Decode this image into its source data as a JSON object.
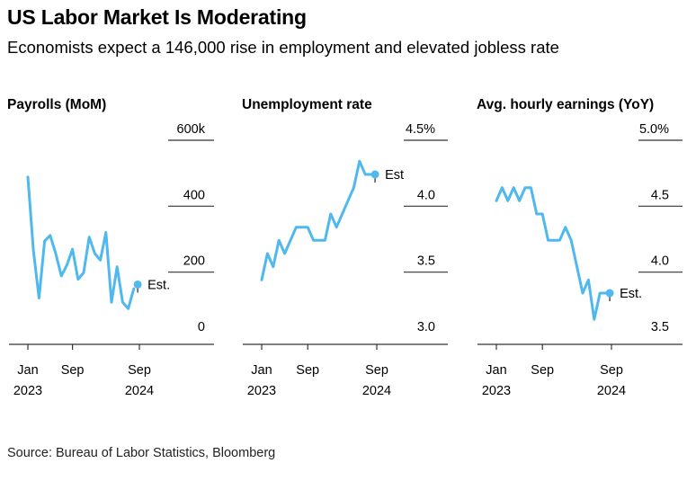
{
  "title": "US Labor Market Is Moderating",
  "subtitle": "Economists expect a 146,000 rise in employment and elevated jobless rate",
  "source": "Source: Bureau of Labor Statistics, Bloomberg",
  "colors": {
    "line": "#4fb8ee",
    "axis": "#333333",
    "text": "#000000"
  },
  "chart_data": [
    {
      "type": "line",
      "title": "Payrolls (MoM)",
      "ylim": [
        0,
        600
      ],
      "yticks": [
        0,
        200,
        400,
        600
      ],
      "ytick_labels": [
        "0",
        "200",
        "400",
        "600k"
      ],
      "x_label_groups": [
        {
          "month": "Jan",
          "year": "2023"
        },
        {
          "month": "Sep",
          "year": ""
        },
        {
          "month": "Sep",
          "year": "2024"
        }
      ],
      "x_label_index": [
        0,
        8,
        20
      ],
      "values": [
        472,
        248,
        105,
        278,
        295,
        240,
        172,
        205,
        253,
        162,
        182,
        290,
        240,
        220,
        304,
        92,
        200,
        92,
        73,
        133
      ],
      "estimate": {
        "value": 146,
        "label": "Est."
      }
    },
    {
      "type": "line",
      "title": "Unemployment rate",
      "ylim": [
        3.0,
        4.5
      ],
      "yticks": [
        3.0,
        3.5,
        4.0,
        4.5
      ],
      "ytick_labels": [
        "3.0",
        "3.5",
        "4.0",
        "4.5%"
      ],
      "x_label_groups": [
        {
          "month": "Jan",
          "year": "2023"
        },
        {
          "month": "Sep",
          "year": ""
        },
        {
          "month": "Sep",
          "year": "2024"
        }
      ],
      "x_label_index": [
        0,
        8,
        20
      ],
      "values": [
        3.4,
        3.6,
        3.5,
        3.7,
        3.6,
        3.7,
        3.8,
        3.8,
        3.8,
        3.7,
        3.7,
        3.7,
        3.9,
        3.8,
        3.9,
        4.0,
        4.1,
        4.3,
        4.2,
        4.2
      ],
      "estimate": {
        "value": 4.2,
        "label": "Est"
      }
    },
    {
      "type": "line",
      "title": "Avg. hourly earnings (YoY)",
      "ylim": [
        3.5,
        5.0
      ],
      "yticks": [
        3.5,
        4.0,
        4.5,
        5.0
      ],
      "ytick_labels": [
        "3.5",
        "4.0",
        "4.5",
        "5.0%"
      ],
      "x_label_groups": [
        {
          "month": "Jan",
          "year": "2023"
        },
        {
          "month": "Sep",
          "year": ""
        },
        {
          "month": "Sep",
          "year": "2024"
        }
      ],
      "x_label_index": [
        0,
        8,
        20
      ],
      "values": [
        4.5,
        4.6,
        4.5,
        4.6,
        4.5,
        4.6,
        4.6,
        4.4,
        4.4,
        4.2,
        4.2,
        4.2,
        4.3,
        4.2,
        4.0,
        3.8,
        3.9,
        3.6,
        3.8,
        3.8
      ],
      "estimate": {
        "value": 3.8,
        "label": "Est."
      }
    }
  ]
}
